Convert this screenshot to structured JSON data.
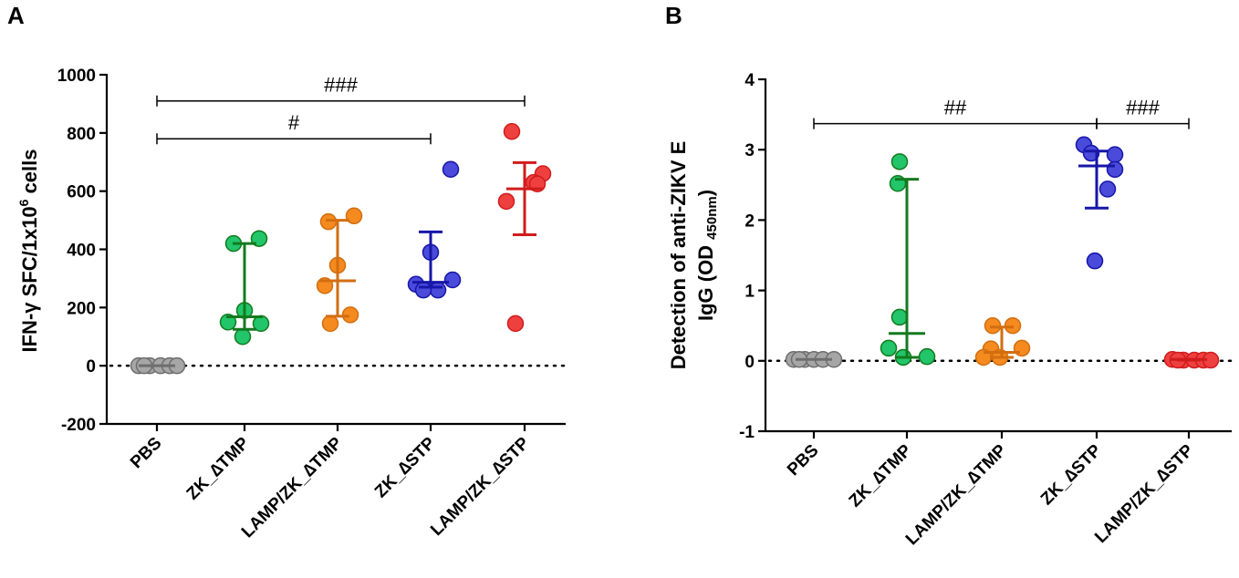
{
  "chart_data": [
    {
      "panel": "A",
      "type": "scatter",
      "ylabel_prefix": "IFN-γ SFC/1x10",
      "ylabel_superscript": "6",
      "ylabel_suffix": " cells",
      "ylim": [
        -200,
        1000
      ],
      "yticks": [
        -200,
        0,
        200,
        400,
        600,
        800,
        1000
      ],
      "categories": [
        "PBS",
        "ZK_∆TMP",
        "LAMP/ZK_∆TMP",
        "ZK_∆STP",
        "LAMP/ZK_∆STP"
      ],
      "colors": [
        "#a6a6a6",
        "#22c56a",
        "#f58a1f",
        "#4b4bdb",
        "#ef4040"
      ],
      "line_colors": [
        "#6e6e6e",
        "#137a1f",
        "#d26e10",
        "#1616a8",
        "#d01c1c"
      ],
      "groups": [
        {
          "name": "PBS",
          "points": [
            0,
            0,
            0,
            0,
            0,
            0
          ],
          "median": 0,
          "range": [
            0,
            0
          ]
        },
        {
          "name": "ZK_∆TMP",
          "points": [
            420,
            437,
            190,
            150,
            100,
            145
          ],
          "median": 168,
          "range": [
            125,
            420
          ]
        },
        {
          "name": "LAMP/ZK_∆TMP",
          "points": [
            515,
            495,
            345,
            275,
            175,
            145
          ],
          "median": 292,
          "range": [
            170,
            500
          ]
        },
        {
          "name": "ZK_∆STP",
          "points": [
            675,
            390,
            295,
            280,
            260,
            260
          ],
          "median": 287,
          "range": [
            270,
            460
          ]
        },
        {
          "name": "LAMP/ZK_∆STP",
          "points": [
            805,
            660,
            630,
            565,
            625,
            145
          ],
          "median": 608,
          "range": [
            450,
            698
          ]
        }
      ],
      "significance": [
        {
          "label": "###",
          "from": "PBS",
          "to": "LAMP/ZK_∆STP",
          "y": 910
        },
        {
          "label": "#",
          "from": "PBS",
          "to": "ZK_∆STP",
          "y": 780
        }
      ]
    },
    {
      "panel": "B",
      "type": "scatter",
      "ylabel_line1": "Detection of anti-ZIKV E",
      "ylabel_line2_prefix": "IgG (OD ",
      "ylabel_line2_subscript": "450nm",
      "ylabel_line2_suffix": ")",
      "ylim": [
        -1,
        4
      ],
      "yticks": [
        -1,
        0,
        1,
        2,
        3,
        4
      ],
      "categories": [
        "PBS",
        "ZK_∆TMP",
        "LAMP/ZK_∆TMP",
        "ZK_∆STP",
        "LAMP/ZK_∆STP"
      ],
      "colors": [
        "#a6a6a6",
        "#22c56a",
        "#f58a1f",
        "#4b4bdb",
        "#ef4040"
      ],
      "line_colors": [
        "#6e6e6e",
        "#137a1f",
        "#d26e10",
        "#1616a8",
        "#d01c1c"
      ],
      "groups": [
        {
          "name": "PBS",
          "points": [
            0.02,
            0.02,
            0.02,
            0.02,
            0.02,
            0.02
          ],
          "median": 0.02,
          "range": [
            0.02,
            0.02
          ]
        },
        {
          "name": "ZK_∆TMP",
          "points": [
            2.83,
            2.52,
            0.62,
            0.18,
            0.05,
            0.06
          ],
          "median": 0.39,
          "range": [
            0.05,
            2.58
          ]
        },
        {
          "name": "LAMP/ZK_∆TMP",
          "points": [
            0.5,
            0.5,
            0.18,
            0.17,
            0.05,
            0.05
          ],
          "median": 0.12,
          "range": [
            0.05,
            0.48
          ]
        },
        {
          "name": "ZK_∆STP",
          "points": [
            3.07,
            2.95,
            2.93,
            2.72,
            2.44,
            1.42
          ],
          "median": 2.77,
          "range": [
            2.17,
            2.98
          ]
        },
        {
          "name": "LAMP/ZK_∆STP",
          "points": [
            0.02,
            0.01,
            0.01,
            0.01,
            0.01,
            0.01
          ],
          "median": 0.02,
          "range": [
            0.01,
            0.02
          ]
        }
      ],
      "significance": [
        {
          "label": "##",
          "from": "PBS",
          "to": "ZK_∆STP",
          "y": 3.37
        },
        {
          "label": "###",
          "from": "ZK_∆STP",
          "to": "LAMP/ZK_∆STP",
          "y": 3.37
        }
      ]
    }
  ]
}
